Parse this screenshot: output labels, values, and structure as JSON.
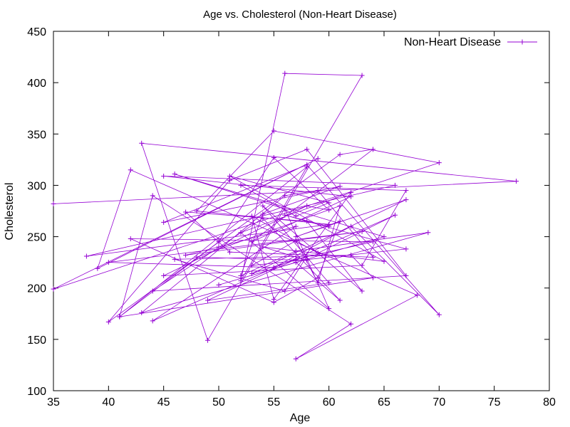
{
  "chart_data": {
    "type": "line",
    "title": "Age vs. Cholesterol (Non-Heart Disease)",
    "xlabel": "Age",
    "ylabel": "Cholesterol",
    "xlim": [
      35,
      80
    ],
    "ylim": [
      100,
      450
    ],
    "xticks": [
      "35",
      "40",
      "45",
      "50",
      "55",
      "60",
      "65",
      "70",
      "75",
      "80"
    ],
    "yticks": [
      "100",
      "150",
      "200",
      "250",
      "300",
      "350",
      "400",
      "450"
    ],
    "grid": false,
    "legend": "top-right",
    "color": "#9400d3",
    "series": [
      {
        "name": "Non-Heart Disease",
        "x": [
          35,
          77,
          43,
          49,
          63,
          56,
          52,
          58,
          41,
          44,
          62,
          57,
          68,
          42,
          39,
          59,
          35,
          70,
          55,
          48,
          60,
          38,
          66,
          45,
          62,
          53,
          64,
          61,
          40,
          51,
          58,
          67,
          44,
          54,
          61,
          57,
          50,
          65,
          46,
          56,
          60,
          52,
          62,
          55,
          53,
          59,
          66,
          44,
          57,
          50,
          47,
          63,
          40,
          55,
          62,
          70,
          58,
          45,
          61,
          54,
          52,
          57,
          69,
          43,
          56,
          59,
          64,
          51,
          47,
          58,
          63,
          54,
          60,
          49,
          57,
          64,
          42,
          55,
          59,
          61,
          57,
          67,
          53,
          58,
          56,
          46,
          62,
          64,
          41,
          50,
          55,
          60,
          58,
          45,
          63,
          67,
          52,
          57,
          60,
          51,
          65,
          54,
          58,
          48,
          61,
          59,
          57,
          53,
          67,
          56,
          60
        ],
        "y": [
          282,
          304,
          341,
          149,
          407,
          409,
          207,
          318,
          172,
          290,
          165,
          131,
          193,
          315,
          219,
          326,
          199,
          322,
          353,
          275,
          262,
          231,
          300,
          309,
          289,
          245,
          335,
          330,
          167,
          305,
          335,
          212,
          197,
          268,
          188,
          225,
          203,
          250,
          311,
          277,
          180,
          254,
          293,
          189,
          270,
          234,
          271,
          168,
          260,
          240,
          232,
          255,
          225,
          220,
          260,
          174,
          320,
          264,
          299,
          272,
          212,
          236,
          254,
          176,
          290,
          295,
          230,
          235,
          274,
          265,
          197,
          280,
          205,
          188,
          228,
          245,
          248,
          186,
          210,
          265,
          250,
          286,
          214,
          231,
          197,
          228,
          232,
          210,
          172,
          245,
          327,
          276,
          280,
          212,
          222,
          295,
          300,
          270,
          283,
          309,
          226,
          240,
          227,
          230,
          280,
          205,
          246,
          222,
          238,
          271,
          260
        ]
      }
    ]
  }
}
